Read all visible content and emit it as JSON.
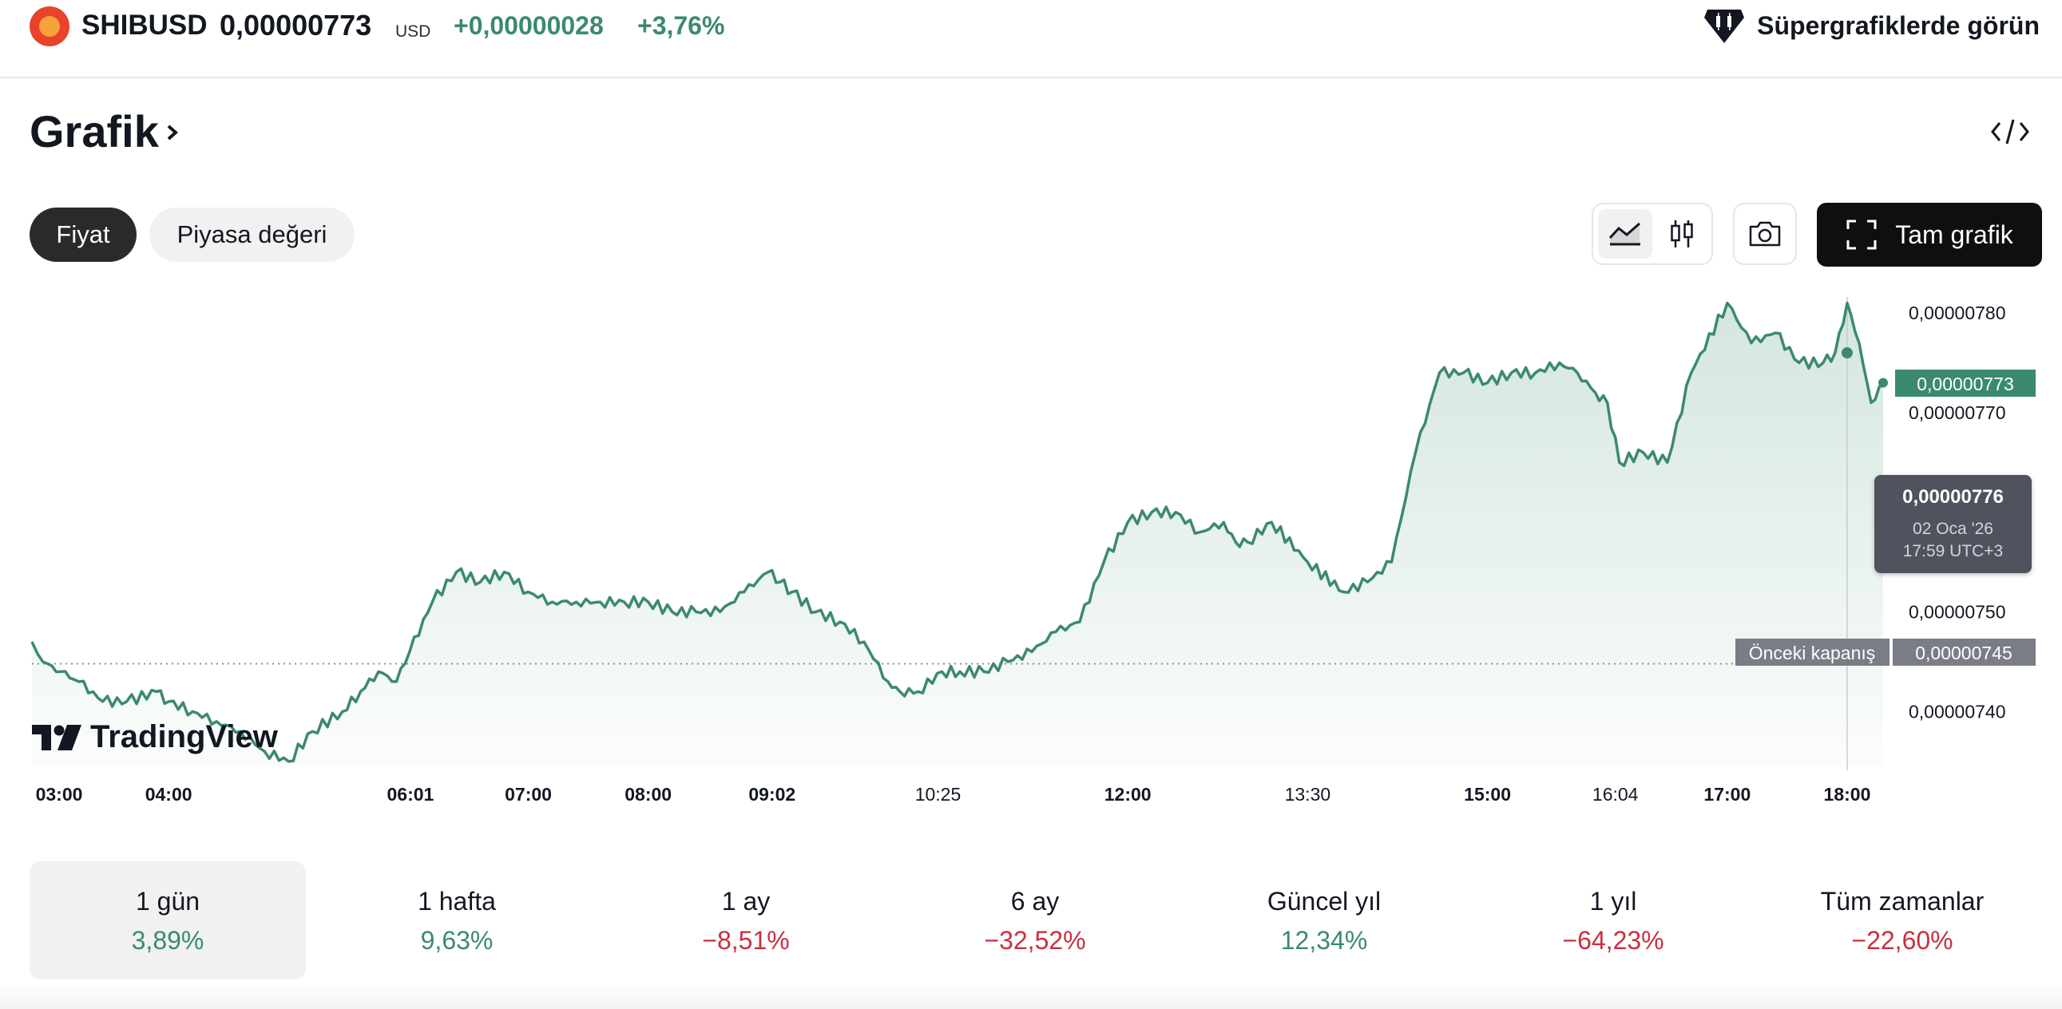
{
  "header": {
    "logo_icon": "shiba-coin-icon",
    "symbol": "SHIBUSD",
    "price": "0,00000773",
    "currency": "USD",
    "change_abs": "+0,00000028",
    "change_pct": "+3,76%",
    "supercharts_icon": "supercharts-gem-icon",
    "supercharts_label": "Süpergrafiklerde görün"
  },
  "section": {
    "title": "Grafik"
  },
  "tabs": [
    {
      "label": "Fiyat",
      "active": true
    },
    {
      "label": "Piyasa değeri",
      "active": false
    }
  ],
  "toolbar": {
    "full_chart_label": "Tam grafik"
  },
  "colors": {
    "positive": "#3b8a6e",
    "negative": "#c9303e",
    "line": "#3b8a6e"
  },
  "chart_data": {
    "type": "area",
    "y_ticks": [
      "0,00000780",
      "0,00000770",
      "0,00000750",
      "0,00000740"
    ],
    "ylim": [
      7.345e-06,
      7.8057e-06
    ],
    "x_ticks": [
      {
        "label": "03:00",
        "bold": true
      },
      {
        "label": "04:00",
        "bold": true
      },
      {
        "label": "06:01",
        "bold": true
      },
      {
        "label": "07:00",
        "bold": true
      },
      {
        "label": "08:00",
        "bold": true
      },
      {
        "label": "09:02",
        "bold": true
      },
      {
        "label": "10:25",
        "bold": false
      },
      {
        "label": "12:00",
        "bold": true
      },
      {
        "label": "13:30",
        "bold": false
      },
      {
        "label": "15:00",
        "bold": true
      },
      {
        "label": "16:04",
        "bold": false
      },
      {
        "label": "17:00",
        "bold": true
      },
      {
        "label": "18:00",
        "bold": true
      }
    ],
    "series": [
      {
        "x_hours": [
          2.86,
          2.95,
          3.1,
          3.25,
          3.45,
          3.65,
          3.9,
          4.0,
          4.2,
          4.4,
          4.6,
          4.8,
          5.0,
          5.2,
          5.45,
          5.6,
          5.75,
          5.9,
          6.01,
          6.2,
          6.4,
          6.6,
          6.8,
          7.0,
          7.2,
          7.4,
          7.6,
          7.8,
          8.0,
          8.2,
          8.4,
          8.6,
          8.8,
          9.0,
          9.1,
          9.2,
          9.4,
          9.6,
          9.8,
          10.0,
          10.1,
          10.25,
          10.45,
          10.6,
          10.8,
          11.0,
          11.2,
          11.4,
          11.6,
          11.8,
          12.0,
          12.2,
          12.4,
          12.6,
          12.8,
          12.9,
          13.0,
          13.2,
          13.5,
          13.8,
          14.0,
          14.2,
          14.4,
          14.6,
          14.8,
          15.0,
          15.2,
          15.4,
          15.6,
          15.75,
          15.9,
          16.0,
          16.1,
          16.3,
          16.5,
          16.7,
          17.0,
          17.2,
          17.4,
          17.6,
          17.8,
          17.9,
          18.0,
          18.1,
          18.2,
          18.3
        ],
        "y": [
          7.47e-06,
          7.45e-06,
          7.44e-06,
          7.43e-06,
          7.41e-06,
          7.41e-06,
          7.42e-06,
          7.41e-06,
          7.4e-06,
          7.39e-06,
          7.38e-06,
          7.36e-06,
          7.35e-06,
          7.38e-06,
          7.4e-06,
          7.42e-06,
          7.44e-06,
          7.43e-06,
          7.46e-06,
          7.51e-06,
          7.54e-06,
          7.53e-06,
          7.54e-06,
          7.52e-06,
          7.51e-06,
          7.51e-06,
          7.51e-06,
          7.51e-06,
          7.51e-06,
          7.5e-06,
          7.5e-06,
          7.5e-06,
          7.52e-06,
          7.54e-06,
          7.53e-06,
          7.52e-06,
          7.5e-06,
          7.49e-06,
          7.47e-06,
          7.43e-06,
          7.42e-06,
          7.42e-06,
          7.44e-06,
          7.44e-06,
          7.44e-06,
          7.45e-06,
          7.46e-06,
          7.48e-06,
          7.49e-06,
          7.55e-06,
          7.59e-06,
          7.6e-06,
          7.6e-06,
          7.58e-06,
          7.59e-06,
          7.57e-06,
          7.57e-06,
          7.59e-06,
          7.55e-06,
          7.52e-06,
          7.53e-06,
          7.55e-06,
          7.66e-06,
          7.74e-06,
          7.74e-06,
          7.73e-06,
          7.74e-06,
          7.74e-06,
          7.75e-06,
          7.74e-06,
          7.72e-06,
          7.71e-06,
          7.65e-06,
          7.66e-06,
          7.65e-06,
          7.74e-06,
          7.81e-06,
          7.77e-06,
          7.78e-06,
          7.75e-06,
          7.75e-06,
          7.76e-06,
          7.81e-06,
          7.77e-06,
          7.71e-06,
          7.73e-06
        ]
      }
    ],
    "current_value_label": "0,00000773",
    "prev_close_label": "Önceki kapanış",
    "prev_close_value": "0,00000745",
    "prev_close": 7.448e-06,
    "crosshair_hour": 18.0,
    "tooltip": {
      "value": "0,00000776",
      "date": "02 Oca '26",
      "time": "17:59 UTC+3"
    },
    "watermark": "TradingView"
  },
  "periods": [
    {
      "label": "1 gün",
      "value": "3,89%",
      "direction": "pos",
      "active": true
    },
    {
      "label": "1 hafta",
      "value": "9,63%",
      "direction": "pos",
      "active": false
    },
    {
      "label": "1 ay",
      "value": "−8,51%",
      "direction": "neg",
      "active": false
    },
    {
      "label": "6 ay",
      "value": "−32,52%",
      "direction": "neg",
      "active": false
    },
    {
      "label": "Güncel yıl",
      "value": "12,34%",
      "direction": "pos",
      "active": false
    },
    {
      "label": "1 yıl",
      "value": "−64,23%",
      "direction": "neg",
      "active": false
    },
    {
      "label": "Tüm zamanlar",
      "value": "−22,60%",
      "direction": "neg",
      "active": false
    }
  ]
}
